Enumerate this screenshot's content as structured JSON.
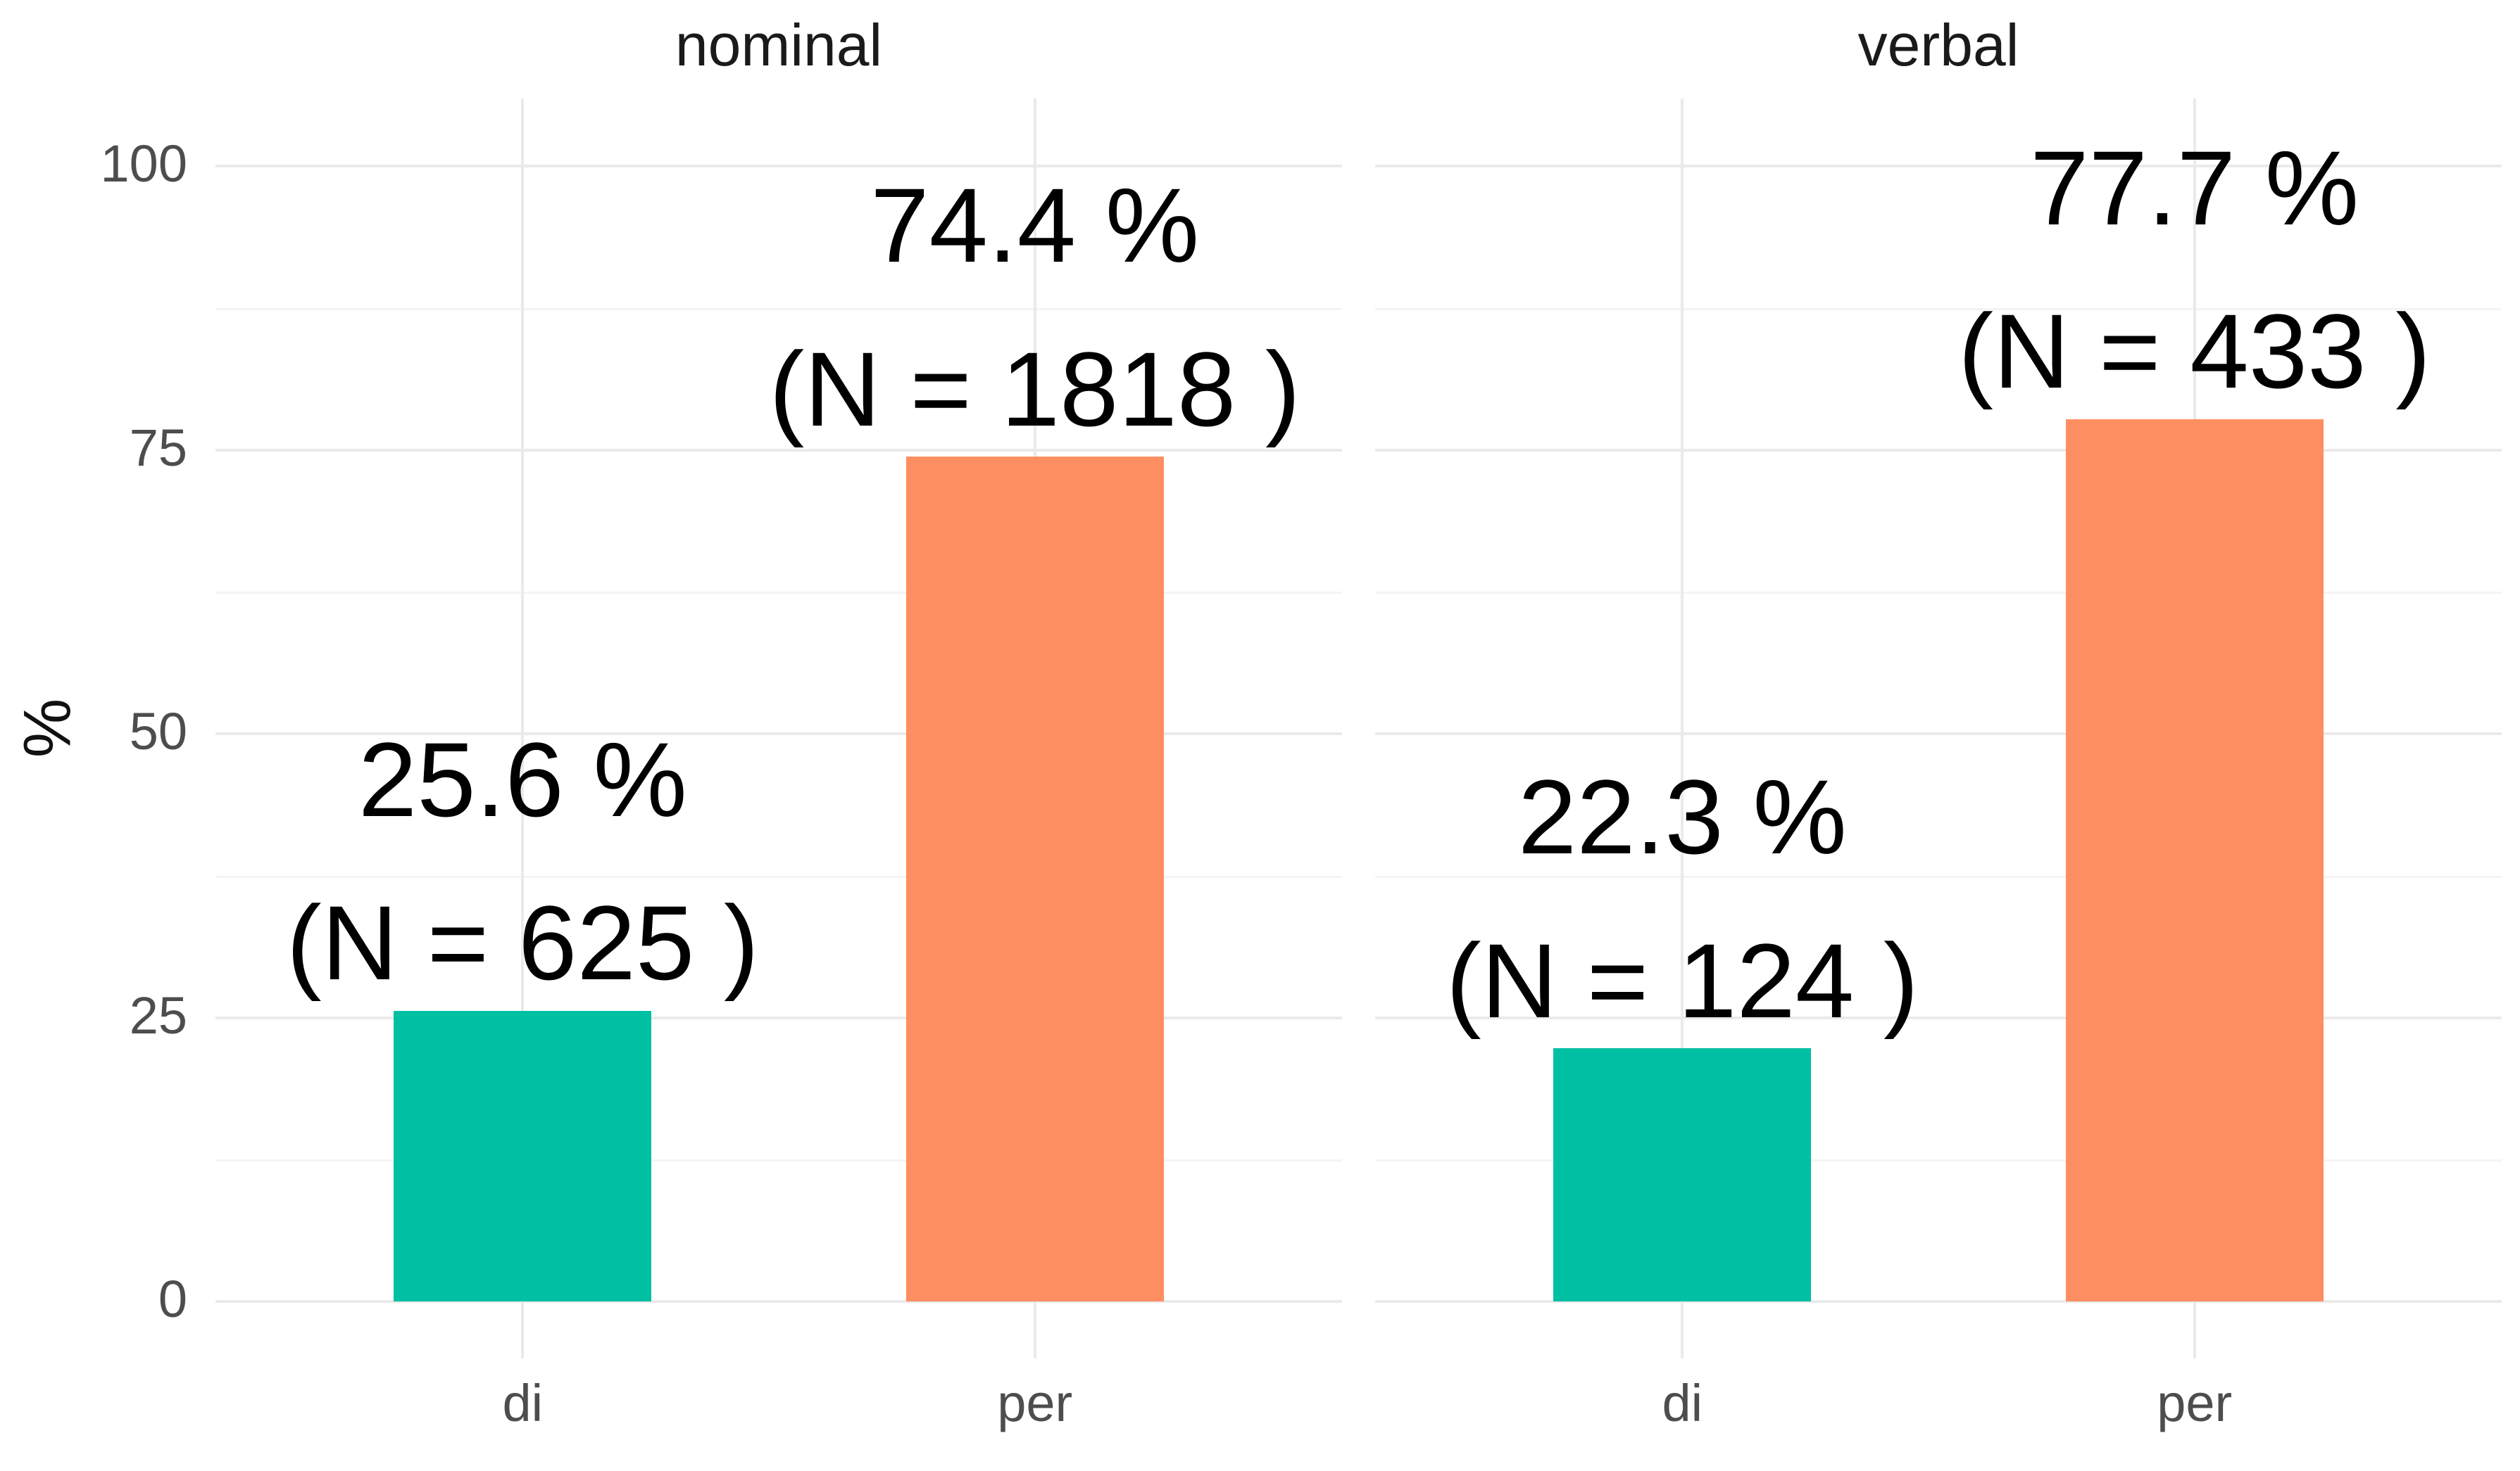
{
  "chart_data": {
    "type": "bar",
    "title": "",
    "ylabel": "%",
    "ylim": [
      0,
      100
    ],
    "y_ticks": [
      0,
      25,
      50,
      75,
      100
    ],
    "y_ticks_minor": [
      12.5,
      37.5,
      62.5,
      87.5
    ],
    "y_tick_labels": [
      "100",
      "75",
      "50",
      "25",
      "0"
    ],
    "grid": true,
    "legend": "none",
    "categories": [
      "di",
      "per"
    ],
    "colors": {
      "di": "#00c0a3",
      "per": "#fd8e61",
      "axis_text": "#4d4d4d",
      "gridline_major": "#eaeaea",
      "gridline_minor": "#f4f4f4",
      "background": "#ffffff"
    },
    "facets": [
      {
        "label": "nominal",
        "bars": [
          {
            "category": "di",
            "value_pct": 25.6,
            "n": 625,
            "label_line1": "25.6 %",
            "label_line2": "(N = 625 )",
            "color": "#00c0a3"
          },
          {
            "category": "per",
            "value_pct": 74.4,
            "n": 1818,
            "label_line1": "74.4 %",
            "label_line2": "(N = 1818 )",
            "color": "#fd8e61"
          }
        ]
      },
      {
        "label": "verbal",
        "bars": [
          {
            "category": "di",
            "value_pct": 22.3,
            "n": 124,
            "label_line1": "22.3 %",
            "label_line2": "(N = 124 )",
            "color": "#00c0a3"
          },
          {
            "category": "per",
            "value_pct": 77.7,
            "n": 433,
            "label_line1": "77.7 %",
            "label_line2": "(N = 433 )",
            "color": "#fd8e61"
          }
        ]
      }
    ]
  }
}
